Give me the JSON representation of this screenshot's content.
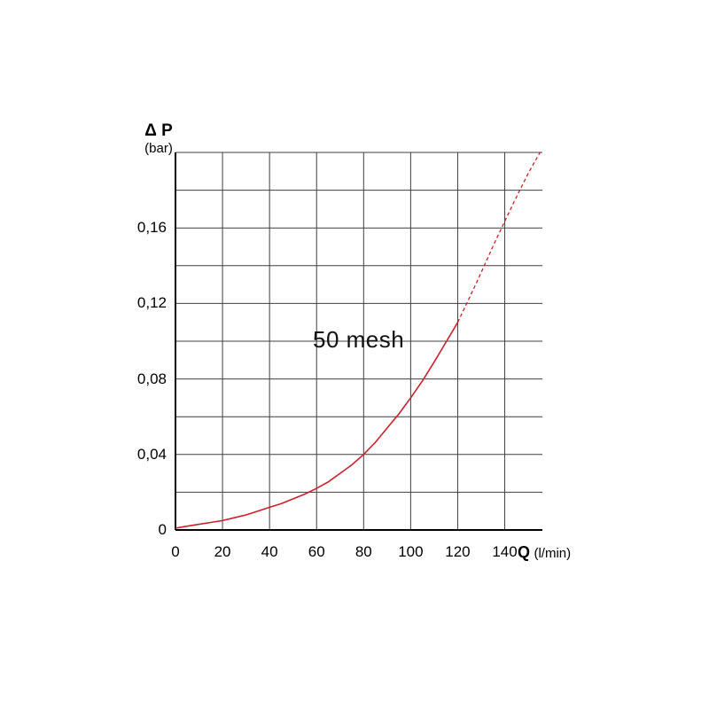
{
  "chart_data": {
    "type": "line",
    "title": "",
    "annotation": "50 mesh",
    "ylabel": {
      "symbol": "Δ P",
      "unit": "(bar)"
    },
    "xlabel": {
      "symbol": "Q",
      "unit": "(l/min)"
    },
    "xlim": [
      0,
      156
    ],
    "ylim": [
      0,
      0.2
    ],
    "grid": "on",
    "legend": "none",
    "x_grid": [
      0,
      20,
      40,
      60,
      80,
      100,
      120,
      140
    ],
    "y_grid": [
      0,
      0.02,
      0.04,
      0.06,
      0.08,
      0.1,
      0.12,
      0.14,
      0.16,
      0.18,
      0.2
    ],
    "x_tick_values": [
      0,
      20,
      40,
      60,
      80,
      100,
      120,
      140
    ],
    "x_tick_labels": [
      "0",
      "20",
      "40",
      "60",
      "80",
      "100",
      "120",
      "140"
    ],
    "y_tick_values": [
      0,
      0.04,
      0.08,
      0.12,
      0.16
    ],
    "y_tick_labels": [
      "0",
      "0,04",
      "0,08",
      "0,12",
      "0,16"
    ],
    "colors": {
      "curve": "#cc2128",
      "grid": "#3f3f3f",
      "axis": "#000000"
    },
    "series": [
      {
        "name": "50 mesh measured",
        "style": "solid",
        "color": "#cc2128",
        "points": [
          [
            0,
            0.001
          ],
          [
            5,
            0.002
          ],
          [
            10,
            0.003
          ],
          [
            15,
            0.004
          ],
          [
            20,
            0.005
          ],
          [
            25,
            0.0065
          ],
          [
            30,
            0.008
          ],
          [
            35,
            0.01
          ],
          [
            40,
            0.012
          ],
          [
            45,
            0.014
          ],
          [
            50,
            0.0165
          ],
          [
            55,
            0.019
          ],
          [
            60,
            0.022
          ],
          [
            65,
            0.0255
          ],
          [
            70,
            0.03
          ],
          [
            75,
            0.0345
          ],
          [
            80,
            0.04
          ],
          [
            85,
            0.0465
          ],
          [
            90,
            0.054
          ],
          [
            95,
            0.0615
          ],
          [
            100,
            0.07
          ],
          [
            105,
            0.079
          ],
          [
            110,
            0.089
          ],
          [
            115,
            0.0995
          ],
          [
            120,
            0.11
          ]
        ]
      },
      {
        "name": "50 mesh extrapolated",
        "style": "dashed",
        "color": "#cc2128",
        "points": [
          [
            120,
            0.11
          ],
          [
            128,
            0.131
          ],
          [
            136,
            0.153
          ],
          [
            144,
            0.174
          ],
          [
            150,
            0.189
          ],
          [
            155,
            0.2
          ]
        ]
      }
    ]
  }
}
